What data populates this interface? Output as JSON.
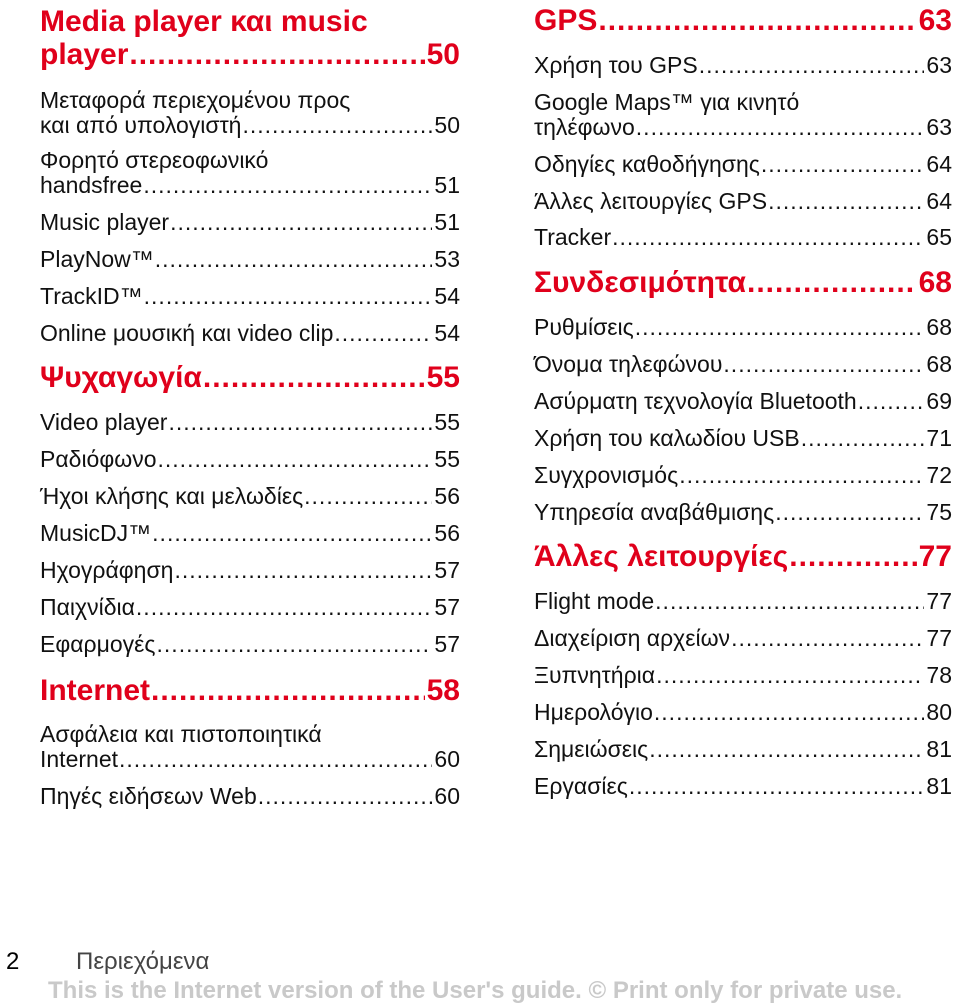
{
  "left_column": {
    "sections": [
      {
        "title_line1": "Media player και music",
        "title": "player",
        "page": "50"
      },
      {
        "title": "Ψυχαγωγία",
        "page": "55"
      },
      {
        "title": "Internet",
        "page": "58"
      }
    ],
    "entries": [
      {
        "line1": "Μεταφορά περιεχομένου προς",
        "title": "και από υπολογιστή",
        "page": "50"
      },
      {
        "line1": "Φορητό στερεοφωνικό",
        "title": "handsfree",
        "page": "51"
      },
      {
        "title": "Music player",
        "page": "51"
      },
      {
        "title": "PlayNow™",
        "page": "53"
      },
      {
        "title": "TrackID™",
        "page": "54"
      },
      {
        "title": "Online μουσική και video clip",
        "page": "54"
      },
      {
        "title": "Video player",
        "page": "55"
      },
      {
        "title": "Ραδιόφωνο",
        "page": "55"
      },
      {
        "title": "Ήχοι κλήσης και μελωδίες",
        "page": "56"
      },
      {
        "title": "MusicDJ™",
        "page": "56"
      },
      {
        "title": "Ηχογράφηση",
        "page": "57"
      },
      {
        "title": "Παιχνίδια",
        "page": "57"
      },
      {
        "title": "Εφαρμογές",
        "page": "57"
      },
      {
        "line1": "Ασφάλεια και πιστοποιητικά",
        "title": "Internet",
        "page": "60"
      },
      {
        "title": "Πηγές ειδήσεων Web",
        "page": "60"
      }
    ]
  },
  "right_column": {
    "sections": [
      {
        "title": "GPS",
        "page": "63"
      },
      {
        "title": "Συνδεσιμότητα",
        "page": "68"
      },
      {
        "title": "Άλλες λειτουργίες",
        "page": "77"
      }
    ],
    "entries": [
      {
        "title": "Χρήση του GPS",
        "page": "63"
      },
      {
        "line1": "Google Maps™ για κινητό",
        "title": "τηλέφωνο",
        "page": "63"
      },
      {
        "title": "Οδηγίες καθοδήγησης",
        "page": "64"
      },
      {
        "title": "Άλλες λειτουργίες GPS",
        "page": "64"
      },
      {
        "title": "Tracker",
        "page": "65"
      },
      {
        "title": "Ρυθμίσεις",
        "page": "68"
      },
      {
        "title": "Όνομα τηλεφώνου",
        "page": "68"
      },
      {
        "title": "Ασύρματη τεχνολογία Bluetooth",
        "page": "69"
      },
      {
        "title": "Χρήση του καλωδίου USB",
        "page": "71"
      },
      {
        "title": "Συγχρονισμός",
        "page": "72"
      },
      {
        "title": "Υπηρεσία αναβάθμισης",
        "page": "75"
      },
      {
        "title": "Flight mode",
        "page": "77"
      },
      {
        "title": "Διαχείριση αρχείων",
        "page": "77"
      },
      {
        "title": "Ξυπνητήρια",
        "page": "78"
      },
      {
        "title": "Ημερολόγιο",
        "page": "80"
      },
      {
        "title": "Σημειώσεις",
        "page": "81"
      },
      {
        "title": "Εργασίες",
        "page": "81"
      }
    ]
  },
  "footer": {
    "page_number": "2",
    "label": "Περιεχόμενα",
    "notice": "This is the Internet version of the User's guide. © Print only for private use."
  },
  "colors": {
    "section_heading": "#e0001b",
    "notice": "#c9c9c9"
  }
}
